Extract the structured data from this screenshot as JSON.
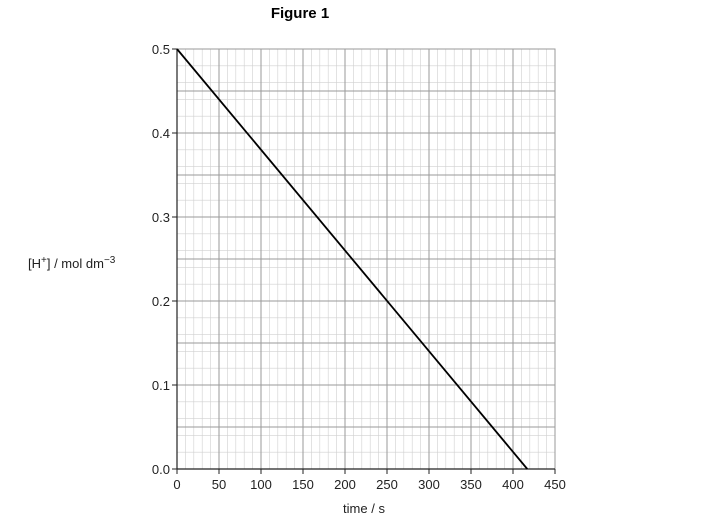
{
  "chart_data": {
    "type": "line",
    "title": "Figure 1",
    "xlabel": "time / s",
    "ylabel": "[H+] / mol dm-3",
    "xlim": [
      0,
      450
    ],
    "ylim": [
      0,
      0.5
    ],
    "x_ticks": [
      0,
      50,
      100,
      150,
      200,
      250,
      300,
      350,
      400,
      450
    ],
    "y_ticks": [
      0.0,
      0.1,
      0.2,
      0.3,
      0.4,
      0.5
    ],
    "x_tick_labels": [
      "0",
      "50",
      "100",
      "150",
      "200",
      "250",
      "300",
      "350",
      "400",
      "450"
    ],
    "y_tick_labels": [
      "0.0",
      "0.1",
      "0.2",
      "0.3",
      "0.4",
      "0.5"
    ],
    "grid": true,
    "series": [
      {
        "x": [
          0,
          417
        ],
        "y": [
          0.5,
          0.0
        ]
      }
    ],
    "colors": {
      "line": "#000000",
      "grid_major": "#9a9a9a",
      "grid_minor": "#d0d0d0",
      "axis": "#222222"
    }
  }
}
